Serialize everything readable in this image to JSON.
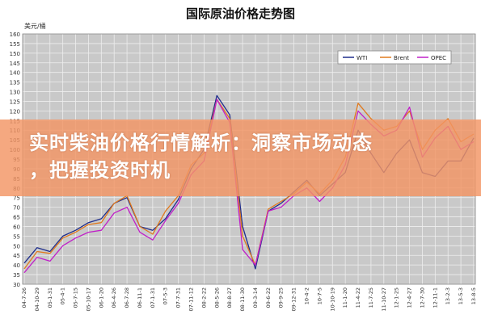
{
  "chart_data": {
    "type": "line",
    "title": "国际原油价格走势图",
    "ylabel": "美元/桶",
    "ylim": [
      30,
      160
    ],
    "yticks": [
      30,
      35,
      40,
      45,
      50,
      55,
      60,
      65,
      70,
      75,
      80,
      85,
      90,
      95,
      100,
      105,
      110,
      115,
      120,
      125,
      130,
      135,
      140,
      145,
      150,
      155,
      160
    ],
    "grid": true,
    "legend": "top-right",
    "x": [
      "04-7-26",
      "04-10-29",
      "05-1-31",
      "05-4-1",
      "05-7-15",
      "05-10-17",
      "06-1-20",
      "06-4-26",
      "06-7-28",
      "06-11-1",
      "07-1-31",
      "07-5-3",
      "07-7-31",
      "07-11-12",
      "08-2-22",
      "08-5-26",
      "08-8-27",
      "08-11-30",
      "09-3-14",
      "09-6-22",
      "09-9-25",
      "09-12-31",
      "10-4-2",
      "10-7-5",
      "10-10-19",
      "11-1-20",
      "11-4-22",
      "11-7-25",
      "11-10-27",
      "12-1-25",
      "12-4-27",
      "12-7-30",
      "12-11-1",
      "13-2-3",
      "13-5-3",
      "13-8-5"
    ],
    "series": [
      {
        "name": "WTI",
        "color": "#1f2e8c",
        "values": [
          41,
          49,
          47,
          55,
          58,
          62,
          64,
          72,
          75,
          60,
          58,
          64,
          74,
          90,
          100,
          128,
          118,
          60,
          38,
          68,
          72,
          78,
          84,
          76,
          82,
          88,
          110,
          98,
          88,
          98,
          105,
          88,
          86,
          94,
          94,
          106
        ]
      },
      {
        "name": "Brent",
        "color": "#e07a1e",
        "values": [
          38,
          47,
          46,
          54,
          57,
          61,
          62,
          72,
          76,
          60,
          56,
          68,
          76,
          92,
          98,
          126,
          116,
          55,
          40,
          69,
          73,
          77,
          83,
          77,
          84,
          96,
          124,
          116,
          110,
          112,
          120,
          100,
          110,
          116,
          104,
          108
        ]
      },
      {
        "name": "OPEC",
        "color": "#c020c8",
        "values": [
          36,
          44,
          42,
          50,
          54,
          57,
          58,
          67,
          70,
          57,
          53,
          63,
          72,
          87,
          94,
          126,
          114,
          48,
          40,
          68,
          70,
          76,
          80,
          73,
          80,
          92,
          120,
          113,
          107,
          110,
          122,
          96,
          106,
          112,
          100,
          104
        ]
      }
    ]
  },
  "overlay": {
    "line1": "实时柴油价格行情解析：洞察市场动态",
    "line2": "，把握投资时机"
  }
}
